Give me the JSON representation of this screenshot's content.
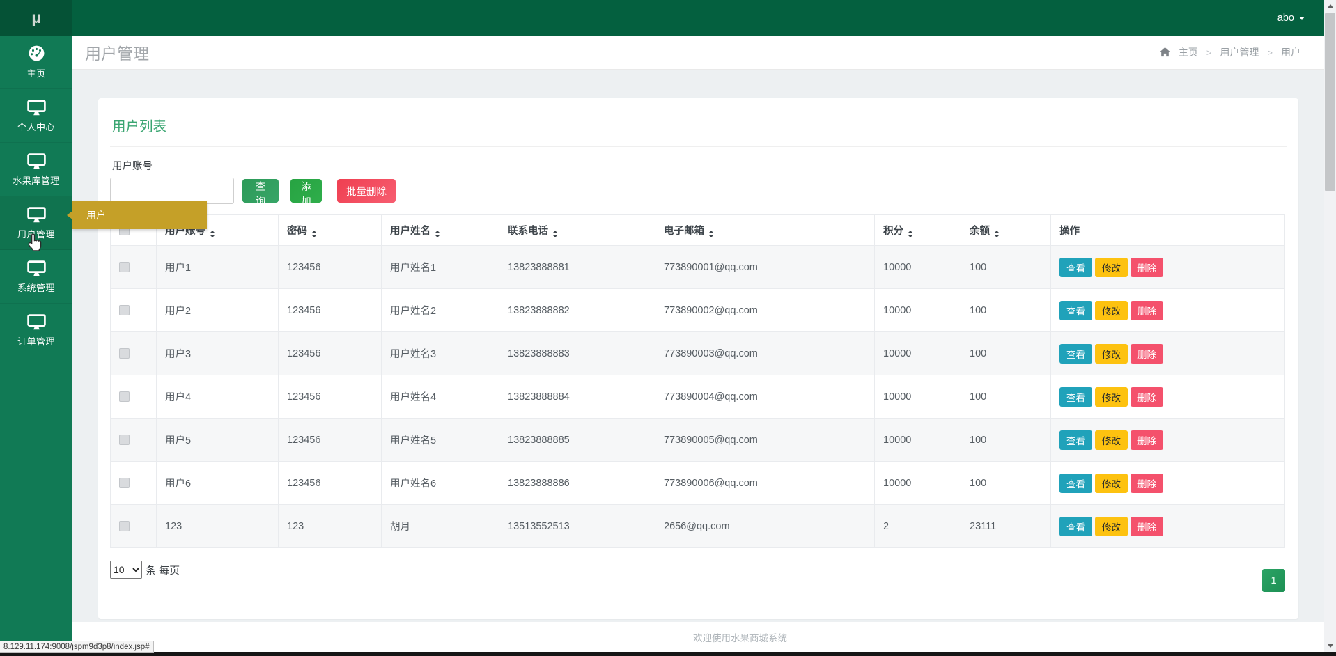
{
  "topbar": {
    "logo": "µ",
    "user_menu_label": "abo"
  },
  "sidebar": {
    "items": [
      {
        "id": "home",
        "icon": "dashboard",
        "label": "主页",
        "active": false
      },
      {
        "id": "profile",
        "icon": "monitor",
        "label": "个人中心",
        "active": false
      },
      {
        "id": "fruit",
        "icon": "monitor",
        "label": "水果库管理",
        "active": false
      },
      {
        "id": "users",
        "icon": "monitor",
        "label": "用户管理",
        "active": true
      },
      {
        "id": "system",
        "icon": "monitor",
        "label": "系统管理",
        "active": false
      },
      {
        "id": "orders",
        "icon": "monitor",
        "label": "订单管理",
        "active": false
      }
    ]
  },
  "flyout": {
    "label": "用户"
  },
  "page": {
    "title": "用户管理",
    "breadcrumb": [
      "主页",
      "用户管理",
      "用户"
    ]
  },
  "card": {
    "title": "用户列表",
    "search_label": "用户账号",
    "search_value": "",
    "buttons": {
      "query": "查询",
      "add": "添加",
      "batch_delete": "批量删除"
    },
    "table": {
      "headers": [
        {
          "label": "用户账号",
          "sortable": true
        },
        {
          "label": "密码",
          "sortable": true
        },
        {
          "label": "用户姓名",
          "sortable": true
        },
        {
          "label": "联系电话",
          "sortable": true
        },
        {
          "label": "电子邮箱",
          "sortable": true
        },
        {
          "label": "积分",
          "sortable": true
        },
        {
          "label": "余额",
          "sortable": true
        },
        {
          "label": "操作",
          "sortable": false
        }
      ],
      "rows": [
        [
          "用户1",
          "123456",
          "用户姓名1",
          "13823888881",
          "773890001@qq.com",
          "10000",
          "100"
        ],
        [
          "用户2",
          "123456",
          "用户姓名2",
          "13823888882",
          "773890002@qq.com",
          "10000",
          "100"
        ],
        [
          "用户3",
          "123456",
          "用户姓名3",
          "13823888883",
          "773890003@qq.com",
          "10000",
          "100"
        ],
        [
          "用户4",
          "123456",
          "用户姓名4",
          "13823888884",
          "773890004@qq.com",
          "10000",
          "100"
        ],
        [
          "用户5",
          "123456",
          "用户姓名5",
          "13823888885",
          "773890005@qq.com",
          "10000",
          "100"
        ],
        [
          "用户6",
          "123456",
          "用户姓名6",
          "13823888886",
          "773890006@qq.com",
          "10000",
          "100"
        ],
        [
          "123",
          "123",
          "胡月",
          "13513552513",
          "2656@qq.com",
          "2",
          "23111"
        ]
      ],
      "actions": {
        "view": "查看",
        "edit": "修改",
        "delete": "删除"
      }
    },
    "pagination": {
      "page_size": "10",
      "per_page_label": "条 每页",
      "current_page": "1"
    }
  },
  "footer": {
    "text": "欢迎使用水果商城系统"
  },
  "status_bar": {
    "url": "8.129.11.174:9008/jspm9d3p8/index.jsp#"
  },
  "colors": {
    "topbar_green": "#04603F",
    "sidebar_green": "#117A55",
    "flyout_gold": "#C5A028",
    "title_green": "#3aa571",
    "query_green": "#2f9e5f",
    "add_green": "#28a745",
    "danger_red": "#f2455c",
    "view_teal": "#20a2ba",
    "edit_yellow": "#fdc210",
    "delete_pink": "#f4516c",
    "page_btn_green": "#28a05f",
    "body_bg": "#edf0f2"
  }
}
